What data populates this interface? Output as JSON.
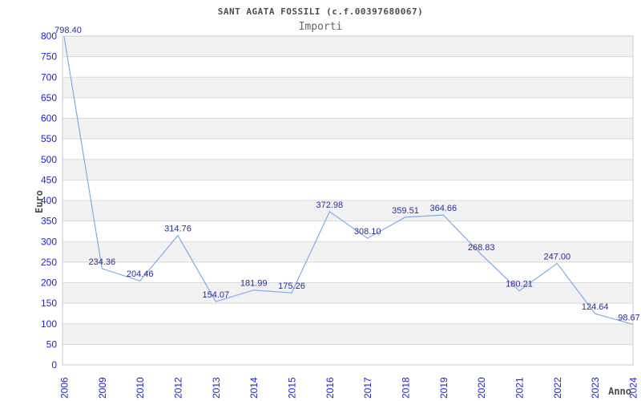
{
  "chart_data": {
    "type": "line",
    "title": "SANT AGATA FOSSILI (c.f.00397680067)",
    "subtitle": "Importi",
    "xlabel": "Anno",
    "ylabel": "Euro",
    "categories": [
      "2006",
      "2009",
      "2010",
      "2012",
      "2013",
      "2014",
      "2015",
      "2016",
      "2017",
      "2018",
      "2019",
      "2020",
      "2021",
      "2022",
      "2023",
      "2024"
    ],
    "values": [
      798.4,
      234.36,
      204.46,
      314.76,
      154.07,
      181.99,
      175.26,
      372.98,
      308.1,
      359.51,
      364.66,
      268.83,
      180.21,
      247.0,
      124.64,
      98.67
    ],
    "point_labels": [
      "798.40",
      "234.36",
      "204.46",
      "314.76",
      "154.07",
      "181.99",
      "175.26",
      "372.98",
      "308.10",
      "359.51",
      "364.66",
      "268.83",
      "180.21",
      "247.00",
      "124.64",
      "98.67"
    ],
    "ylim": [
      0,
      800
    ],
    "ytick_step": 50,
    "yticks": [
      0,
      50,
      100,
      150,
      200,
      250,
      300,
      350,
      400,
      450,
      500,
      550,
      600,
      650,
      700,
      750,
      800
    ],
    "grid": true,
    "legend": "none",
    "band_fill": "alternating horizontal bands between gridlines",
    "colors": {
      "line": "#7fabe8",
      "data_label": "#2a2a99",
      "tick_label": "#2222cc",
      "axis_title": "#4d4d4d",
      "chart_title": "#4d4d4d",
      "subtitle_text": "#666666",
      "band": "#f2f2f2",
      "gridline": "#d9d9d9",
      "border": "#cccccc",
      "background": "#ffffff"
    }
  }
}
